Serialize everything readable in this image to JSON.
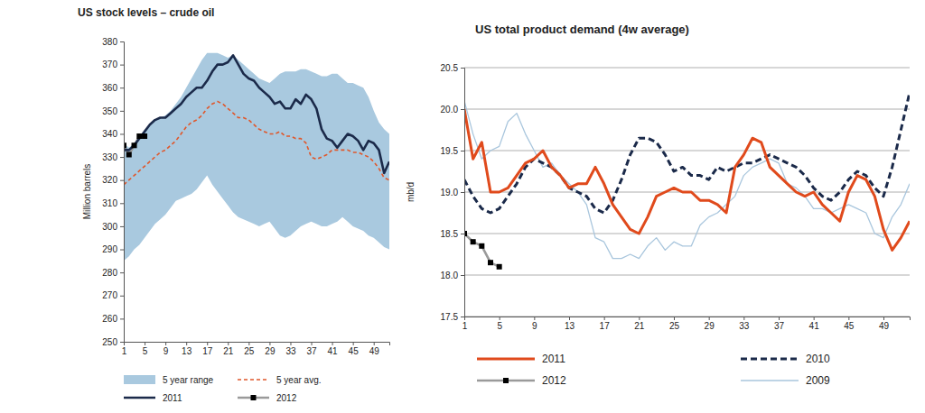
{
  "chart_data": [
    {
      "type": "line",
      "title": "US stock levels – crude oil",
      "y_label": "Million barrels",
      "x": [
        1,
        2,
        3,
        4,
        5,
        6,
        7,
        8,
        9,
        10,
        11,
        12,
        13,
        14,
        15,
        16,
        17,
        18,
        19,
        20,
        21,
        22,
        23,
        24,
        25,
        26,
        27,
        28,
        29,
        30,
        31,
        32,
        33,
        34,
        35,
        36,
        37,
        38,
        39,
        40,
        41,
        42,
        43,
        44,
        45,
        46,
        47,
        48,
        49,
        50,
        51,
        52
      ],
      "xlim": [
        1,
        52
      ],
      "xticks": [
        1,
        5,
        9,
        13,
        17,
        21,
        25,
        29,
        33,
        37,
        41,
        45,
        49
      ],
      "ylim": [
        250,
        380
      ],
      "yticks": [
        250,
        260,
        270,
        280,
        290,
        300,
        310,
        320,
        330,
        340,
        350,
        360,
        370,
        380
      ],
      "grid": false,
      "legend": "bottom",
      "series": [
        {
          "name": "5 year range",
          "type": "area",
          "color": "#a9c9df",
          "values": [
            336,
            334,
            336,
            339,
            341,
            344,
            346,
            347,
            348,
            350,
            353,
            356,
            360,
            364,
            368,
            372,
            375,
            375,
            375,
            374,
            373,
            374,
            372,
            370,
            368,
            366,
            364,
            363,
            362,
            364,
            366,
            367,
            367,
            367,
            368,
            368,
            367,
            366,
            365,
            365,
            366,
            366,
            364,
            362,
            362,
            361,
            360,
            356,
            350,
            345,
            342,
            340
          ],
          "lower": [
            285,
            287,
            290,
            292,
            295,
            298,
            301,
            303,
            305,
            308,
            311,
            312,
            313,
            314,
            316,
            319,
            322,
            318,
            315,
            312,
            309,
            306,
            304,
            303,
            302,
            301,
            300,
            301,
            302,
            299,
            296,
            295,
            296,
            298,
            300,
            301,
            302,
            301,
            300,
            300,
            301,
            302,
            304,
            302,
            300,
            299,
            298,
            296,
            295,
            293,
            291,
            290
          ]
        },
        {
          "name": "5 year avg.",
          "type": "line",
          "color": "#e0572b",
          "line_style": "dashed",
          "marker": "none",
          "values": [
            318,
            320,
            322,
            324,
            326,
            328,
            330,
            332,
            333,
            335,
            337,
            340,
            343,
            345,
            346,
            348,
            351,
            353,
            354,
            353,
            351,
            349,
            347,
            347,
            346,
            344,
            342,
            341,
            340,
            340,
            341,
            339,
            339,
            338,
            338,
            336,
            330,
            329,
            330,
            331,
            333,
            333,
            333,
            333,
            332,
            332,
            331,
            330,
            328,
            325,
            321,
            320
          ]
        },
        {
          "name": "2011",
          "type": "line",
          "color": "#1b2a4a",
          "line_style": "solid",
          "marker": "none",
          "values": [
            333,
            333,
            335,
            338,
            341,
            344,
            346,
            347,
            347,
            349,
            351,
            353,
            356,
            358,
            360,
            360,
            363,
            367,
            370,
            370,
            371,
            374,
            370,
            366,
            364,
            363,
            360,
            358,
            356,
            353,
            354,
            351,
            351,
            355,
            353,
            357,
            355,
            351,
            342,
            338,
            337,
            334,
            337,
            340,
            339,
            337,
            333,
            337,
            336,
            333,
            323,
            328
          ]
        },
        {
          "name": "2012",
          "type": "line",
          "color": "#9a9a9a",
          "line_style": "solid",
          "marker": "square",
          "values": [
            335,
            331,
            335,
            339,
            339,
            null,
            null,
            null,
            null,
            null,
            null,
            null,
            null,
            null,
            null,
            null,
            null,
            null,
            null,
            null,
            null,
            null,
            null,
            null,
            null,
            null,
            null,
            null,
            null,
            null,
            null,
            null,
            null,
            null,
            null,
            null,
            null,
            null,
            null,
            null,
            null,
            null,
            null,
            null,
            null,
            null,
            null,
            null,
            null,
            null,
            null,
            null
          ]
        }
      ]
    },
    {
      "type": "line",
      "title": "US total product demand (4w average)",
      "y_label": "mb/d",
      "x": [
        1,
        2,
        3,
        4,
        5,
        6,
        7,
        8,
        9,
        10,
        11,
        12,
        13,
        14,
        15,
        16,
        17,
        18,
        19,
        20,
        21,
        22,
        23,
        24,
        25,
        26,
        27,
        28,
        29,
        30,
        31,
        32,
        33,
        34,
        35,
        36,
        37,
        38,
        39,
        40,
        41,
        42,
        43,
        44,
        45,
        46,
        47,
        48,
        49,
        50,
        51,
        52
      ],
      "xlim": [
        1,
        52
      ],
      "xticks": [
        1,
        5,
        9,
        13,
        17,
        21,
        25,
        29,
        33,
        37,
        41,
        45,
        49
      ],
      "ylim": [
        17.5,
        20.5
      ],
      "yticks": [
        17.5,
        {
          "value": 18,
          "label": "18.0"
        },
        18.5,
        {
          "value": 19,
          "label": "19.0"
        },
        19.5,
        {
          "value": 20,
          "label": "20.0"
        },
        20.5
      ],
      "grid": true,
      "legend": "bottom",
      "series": [
        {
          "name": "2011",
          "type": "line",
          "color": "#e04a1c",
          "line_style": "solid",
          "marker": "none",
          "values": [
            20.0,
            19.4,
            19.6,
            19.0,
            19.0,
            19.05,
            19.2,
            19.35,
            19.4,
            19.5,
            19.3,
            19.2,
            19.05,
            19.1,
            19.1,
            19.3,
            19.1,
            18.85,
            18.7,
            18.55,
            18.5,
            18.7,
            18.95,
            19.0,
            19.05,
            19.0,
            19.0,
            18.9,
            18.9,
            18.85,
            18.75,
            19.3,
            19.45,
            19.65,
            19.6,
            19.3,
            19.2,
            19.1,
            19.0,
            18.95,
            19.0,
            18.85,
            18.75,
            18.65,
            19.0,
            19.2,
            19.15,
            18.95,
            18.55,
            18.3,
            18.45,
            18.65
          ]
        },
        {
          "name": "2010",
          "type": "line",
          "color": "#1b2a4a",
          "line_style": "dashed",
          "marker": "none",
          "values": [
            19.15,
            18.95,
            18.8,
            18.75,
            18.8,
            18.95,
            19.1,
            19.3,
            19.4,
            19.35,
            19.3,
            19.2,
            19.05,
            19.0,
            18.95,
            18.8,
            18.75,
            18.9,
            19.15,
            19.45,
            19.65,
            19.65,
            19.6,
            19.45,
            19.25,
            19.3,
            19.2,
            19.2,
            19.15,
            19.3,
            19.25,
            19.3,
            19.35,
            19.35,
            19.4,
            19.45,
            19.4,
            19.35,
            19.3,
            19.2,
            19.05,
            18.95,
            18.9,
            19.0,
            19.15,
            19.25,
            19.2,
            19.05,
            18.95,
            19.3,
            19.75,
            20.2
          ]
        },
        {
          "name": "2012",
          "type": "line",
          "color": "#9a9a9a",
          "line_style": "solid",
          "marker": "square",
          "values": [
            18.5,
            18.4,
            18.35,
            18.15,
            18.1,
            null,
            null,
            null,
            null,
            null,
            null,
            null,
            null,
            null,
            null,
            null,
            null,
            null,
            null,
            null,
            null,
            null,
            null,
            null,
            null,
            null,
            null,
            null,
            null,
            null,
            null,
            null,
            null,
            null,
            null,
            null,
            null,
            null,
            null,
            null,
            null,
            null,
            null,
            null,
            null,
            null,
            null,
            null,
            null,
            null,
            null,
            null
          ]
        },
        {
          "name": "2009",
          "type": "line",
          "color": "#a9c6dd",
          "line_style": "solid",
          "marker": "none",
          "values": [
            20.1,
            19.7,
            19.4,
            19.5,
            19.55,
            19.85,
            19.95,
            19.7,
            19.5,
            19.3,
            19.35,
            19.2,
            19.1,
            19.0,
            18.85,
            18.45,
            18.4,
            18.2,
            18.2,
            18.25,
            18.2,
            18.35,
            18.45,
            18.3,
            18.4,
            18.35,
            18.35,
            18.6,
            18.7,
            18.75,
            18.85,
            18.95,
            19.2,
            19.3,
            19.35,
            19.4,
            19.35,
            19.1,
            19.05,
            18.95,
            18.8,
            18.8,
            18.75,
            18.8,
            18.85,
            18.8,
            18.75,
            18.5,
            18.45,
            18.7,
            18.85,
            19.1
          ]
        }
      ]
    }
  ]
}
